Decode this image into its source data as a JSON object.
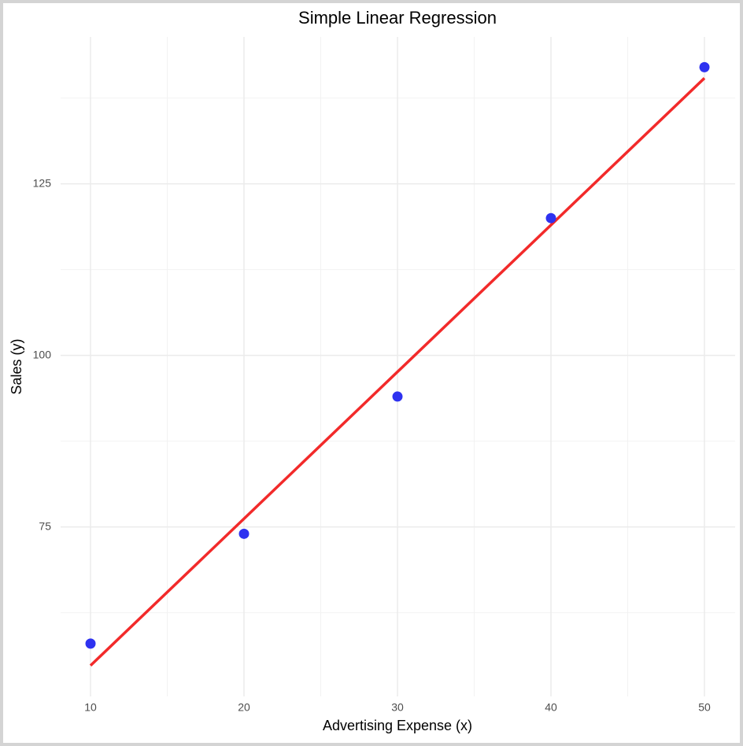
{
  "chart_data": {
    "type": "scatter",
    "title": "Simple Linear Regression",
    "x_label": "Advertising Expense (x)",
    "y_label": "Sales (y)",
    "x": [
      10,
      20,
      30,
      40,
      50
    ],
    "values": [
      58,
      74,
      94,
      120,
      142
    ],
    "color": "#2e32f0",
    "fit": {
      "x": [
        10,
        50
      ],
      "values": [
        54.8,
        140.4
      ],
      "color": "#f22a2a"
    },
    "xlim": [
      8.05,
      52
    ],
    "ylim": [
      50.3,
      146.4
    ],
    "xticks": [
      10,
      20,
      30,
      40,
      50
    ],
    "yticks": [
      75,
      100,
      125
    ],
    "xminor": [
      15,
      25,
      35,
      45
    ],
    "yminor": [
      62.5,
      87.5,
      112.5,
      137.5
    ],
    "grid": true
  }
}
